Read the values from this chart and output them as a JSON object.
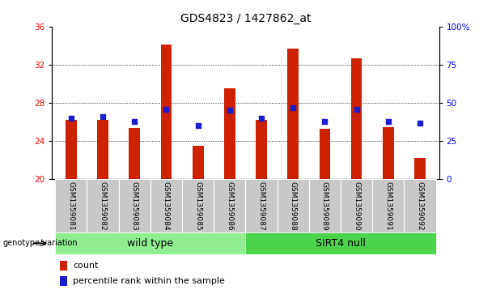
{
  "title": "GDS4823 / 1427862_at",
  "samples": [
    "GSM1359081",
    "GSM1359082",
    "GSM1359083",
    "GSM1359084",
    "GSM1359085",
    "GSM1359086",
    "GSM1359087",
    "GSM1359088",
    "GSM1359089",
    "GSM1359090",
    "GSM1359091",
    "GSM1359092"
  ],
  "counts": [
    26.2,
    26.2,
    25.4,
    34.1,
    23.5,
    29.5,
    26.2,
    33.7,
    25.3,
    32.7,
    25.5,
    22.2
  ],
  "percentile_ranks": [
    40.0,
    41.0,
    38.0,
    46.0,
    35.0,
    45.5,
    40.0,
    47.0,
    38.0,
    46.0,
    38.0,
    37.0
  ],
  "groups": [
    "wild type",
    "wild type",
    "wild type",
    "wild type",
    "wild type",
    "wild type",
    "SIRT4 null",
    "SIRT4 null",
    "SIRT4 null",
    "SIRT4 null",
    "SIRT4 null",
    "SIRT4 null"
  ],
  "ylim_left": [
    20,
    36
  ],
  "ylim_right": [
    0,
    100
  ],
  "yticks_left": [
    20,
    24,
    28,
    32,
    36
  ],
  "yticks_right": [
    0,
    25,
    50,
    75,
    100
  ],
  "bar_color": "#CC2200",
  "dot_color": "#1C1CCC",
  "bar_width": 0.35,
  "bar_bottom": 20,
  "legend_count_label": "count",
  "legend_pct_label": "percentile rank within the sample",
  "genotype_label": "genotype/variation",
  "title_fontsize": 10,
  "tick_fontsize": 7.5,
  "sample_fontsize": 6.5,
  "group_fontsize": 9,
  "legend_fontsize": 8,
  "wildtype_color": "#90EE90",
  "sirt4_color": "#4CD44C",
  "label_bg_color": "#C8C8C8"
}
